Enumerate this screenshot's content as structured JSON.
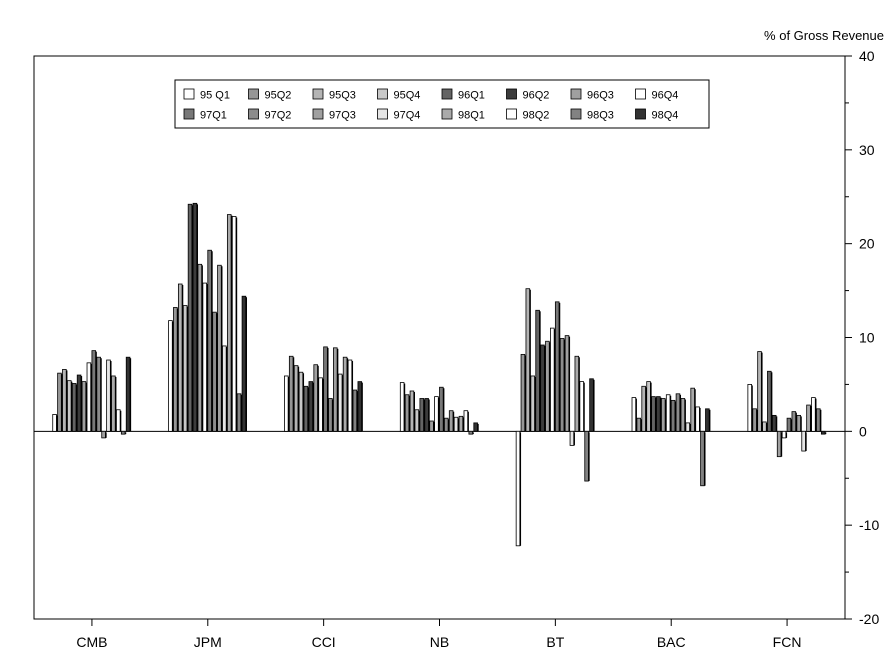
{
  "chart_data": {
    "type": "bar",
    "ylabel": "% of Gross Revenue",
    "ylim": [
      -20,
      40
    ],
    "yticks": [
      -20,
      -10,
      0,
      10,
      20,
      30,
      40
    ],
    "grid": false,
    "legend_placement": "top-center",
    "categories": [
      "CMB",
      "JPM",
      "CCI",
      "NB",
      "BT",
      "BAC",
      "FCN"
    ],
    "series": [
      {
        "name": "95 Q1",
        "color": "#ffffff",
        "values": [
          1.8,
          11.8,
          5.9,
          5.2,
          -12.2,
          3.6,
          5.0
        ]
      },
      {
        "name": "95Q2",
        "color": "#969696",
        "values": [
          6.2,
          13.2,
          8.0,
          3.9,
          8.2,
          1.4,
          2.4
        ]
      },
      {
        "name": "95Q3",
        "color": "#b4b4b4",
        "values": [
          6.6,
          15.7,
          7.0,
          4.3,
          15.2,
          4.8,
          8.5
        ]
      },
      {
        "name": "95Q4",
        "color": "#c8c8c8",
        "values": [
          5.4,
          13.4,
          6.3,
          2.3,
          5.9,
          5.3,
          1.0
        ]
      },
      {
        "name": "96Q1",
        "color": "#646464",
        "values": [
          5.1,
          24.2,
          4.8,
          3.5,
          12.9,
          3.7,
          6.4
        ]
      },
      {
        "name": "96Q2",
        "color": "#3c3c3c",
        "values": [
          6.0,
          24.3,
          5.3,
          3.5,
          9.2,
          3.7,
          1.7
        ]
      },
      {
        "name": "96Q3",
        "color": "#a0a0a0",
        "values": [
          5.3,
          17.8,
          7.1,
          1.1,
          9.6,
          3.5,
          -2.7
        ]
      },
      {
        "name": "96Q4",
        "color": "#ffffff",
        "values": [
          7.3,
          15.8,
          5.7,
          3.7,
          11.0,
          3.9,
          -0.7
        ]
      },
      {
        "name": "97Q1",
        "color": "#787878",
        "values": [
          8.6,
          19.3,
          9.0,
          4.7,
          13.8,
          3.3,
          1.4
        ]
      },
      {
        "name": "97Q2",
        "color": "#8c8c8c",
        "values": [
          7.9,
          12.7,
          3.5,
          1.4,
          9.9,
          4.0,
          2.1
        ]
      },
      {
        "name": "97Q3",
        "color": "#a0a0a0",
        "values": [
          -0.7,
          17.7,
          8.9,
          2.2,
          10.2,
          3.5,
          1.7
        ]
      },
      {
        "name": "97Q4",
        "color": "#e6e6e6",
        "values": [
          7.6,
          9.1,
          6.1,
          1.5,
          -1.5,
          0.9,
          -2.1
        ]
      },
      {
        "name": "98Q1",
        "color": "#aaaaaa",
        "values": [
          5.9,
          23.1,
          7.9,
          1.6,
          8.0,
          4.6,
          2.8
        ]
      },
      {
        "name": "98Q2",
        "color": "#ffffff",
        "values": [
          2.3,
          22.9,
          7.6,
          2.2,
          5.3,
          2.6,
          3.6
        ]
      },
      {
        "name": "98Q3",
        "color": "#828282",
        "values": [
          -0.3,
          4.0,
          4.4,
          -0.3,
          -5.3,
          -5.8,
          2.4
        ]
      },
      {
        "name": "98Q4",
        "color": "#323232",
        "values": [
          7.9,
          14.4,
          5.3,
          0.9,
          5.6,
          2.4,
          -0.3
        ]
      }
    ]
  }
}
